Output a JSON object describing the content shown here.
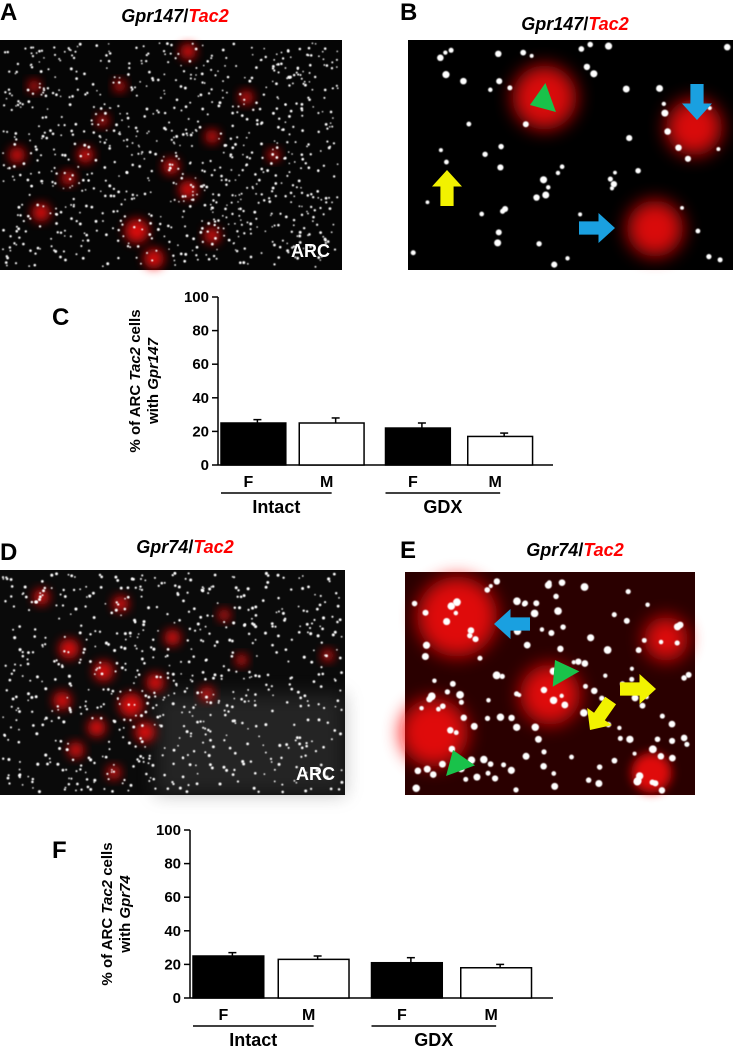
{
  "panels": [
    {
      "label": "A",
      "title": [
        "Gpr147",
        "/",
        "Tac2"
      ],
      "region": "ARC"
    },
    {
      "label": "B",
      "title": [
        "Gpr147",
        "/",
        "Tac2"
      ]
    },
    {
      "label": "D",
      "title": [
        "Gpr74",
        "/",
        "Tac2"
      ],
      "region": "ARC"
    },
    {
      "label": "E",
      "title": [
        "Gpr74",
        "/",
        "Tac2"
      ]
    }
  ],
  "chart_data": [
    {
      "type": "bar",
      "label": "C",
      "ylabel": [
        [
          "% of ARC ",
          "Tac2",
          " cells"
        ],
        [
          "with ",
          "Gpr147"
        ]
      ],
      "categories": [
        "F",
        "M",
        "F",
        "M"
      ],
      "groups": [
        "Intact",
        "GDX"
      ],
      "values": [
        25,
        25,
        22,
        17
      ],
      "errors": [
        2,
        3,
        3,
        2
      ],
      "colors": [
        "#000000",
        "#ffffff",
        "#000000",
        "#ffffff"
      ],
      "ylim": [
        0,
        100
      ],
      "yticks": [
        0,
        20,
        40,
        60,
        80,
        100
      ]
    },
    {
      "type": "bar",
      "label": "F",
      "ylabel": [
        [
          "% of ARC ",
          "Tac2",
          " cells"
        ],
        [
          "with ",
          "Gpr74"
        ]
      ],
      "categories": [
        "F",
        "M",
        "F",
        "M"
      ],
      "groups": [
        "Intact",
        "GDX"
      ],
      "values": [
        25,
        23,
        21,
        18
      ],
      "errors": [
        2,
        2,
        3,
        2
      ],
      "colors": [
        "#000000",
        "#ffffff",
        "#000000",
        "#ffffff"
      ],
      "ylim": [
        0,
        100
      ],
      "yticks": [
        0,
        20,
        40,
        60,
        80,
        100
      ]
    }
  ]
}
